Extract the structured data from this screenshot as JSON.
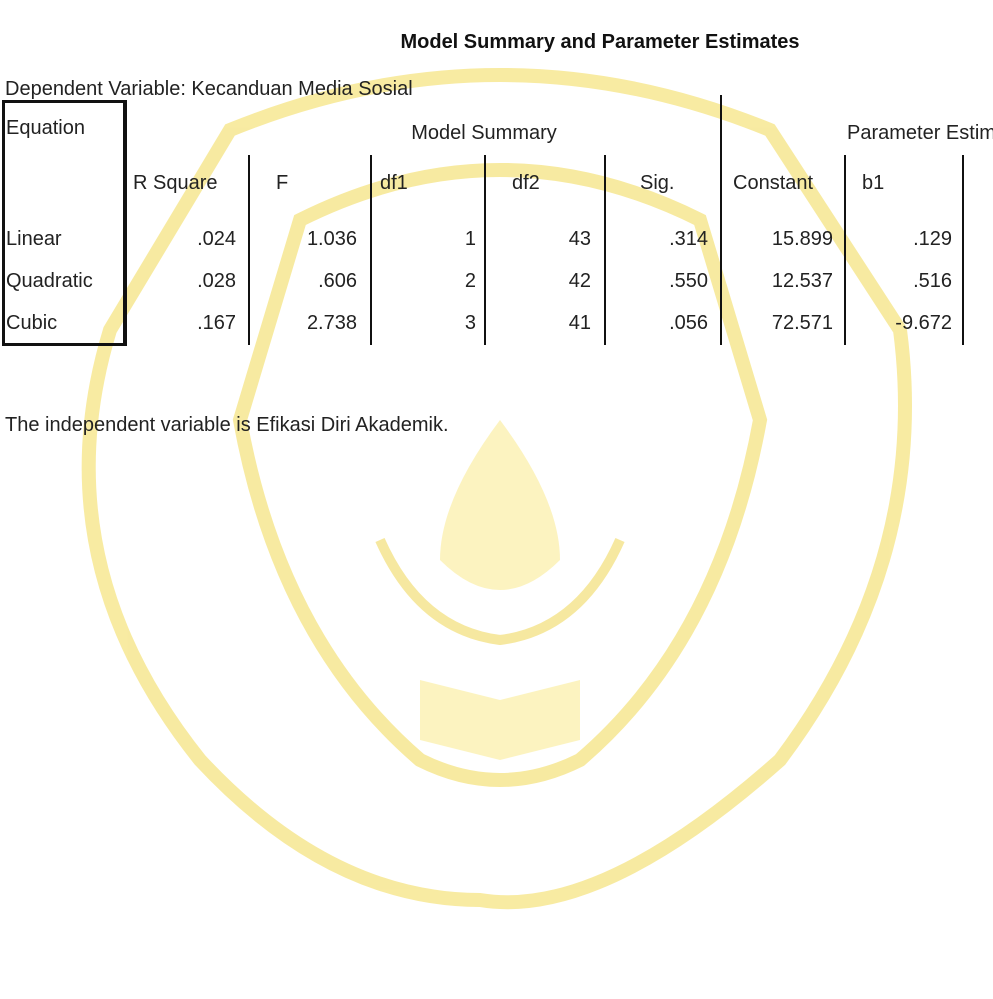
{
  "title": "Model Summary and Parameter Estimates",
  "dependent_variable": "Dependent Variable:  Kecanduan Media Sosial",
  "table": {
    "header": {
      "equation": "Equation",
      "groups": [
        "Model Summary",
        "Parameter Estimates"
      ],
      "columns": [
        "R Square",
        "F",
        "df1",
        "df2",
        "Sig.",
        "Constant",
        "b1"
      ]
    },
    "rows": [
      [
        "Linear",
        ".024",
        "1.036",
        "1",
        "43",
        ".314",
        "15.899",
        ".129"
      ],
      [
        "Quadratic",
        ".028",
        ".606",
        "2",
        "42",
        ".550",
        "12.537",
        ".516"
      ],
      [
        "Cubic",
        ".167",
        "2.738",
        "3",
        "41",
        ".056",
        "72.571",
        "-9.672"
      ]
    ]
  },
  "footnote": "The independent variable is Efikasi Diri Akademik."
}
